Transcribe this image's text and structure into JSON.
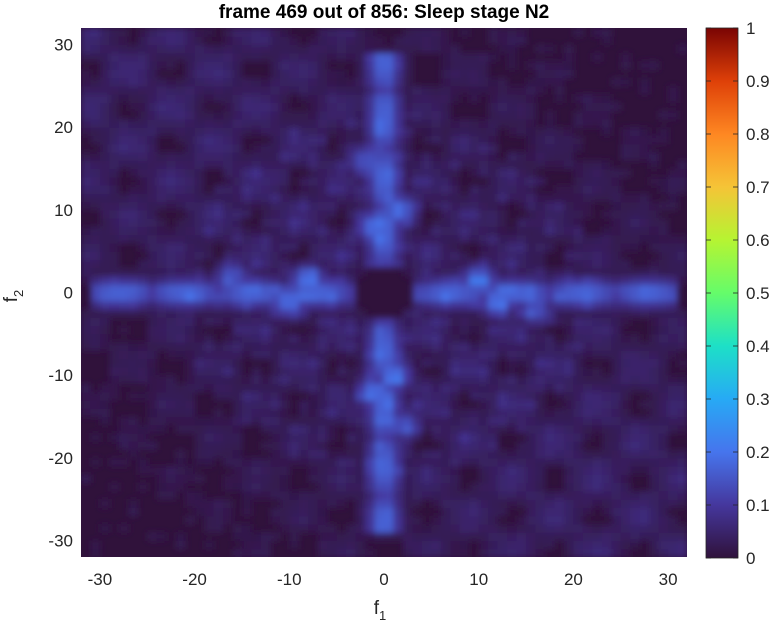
{
  "chart_data": {
    "type": "heatmap",
    "title": "frame 469 out of 856: Sleep stage N2",
    "xlabel": "f",
    "xlabel_sub": "1",
    "ylabel": "f",
    "ylabel_sub": "2",
    "xlim": [
      -32,
      32
    ],
    "ylim": [
      -32,
      32
    ],
    "x_ticks": [
      -30,
      -20,
      -10,
      0,
      10,
      20,
      30
    ],
    "y_ticks": [
      -30,
      -20,
      -10,
      0,
      10,
      20,
      30
    ],
    "colorbar": {
      "range": [
        0,
        1
      ],
      "ticks": [
        0,
        0.1,
        0.2,
        0.3,
        0.4,
        0.5,
        0.6,
        0.7,
        0.8,
        0.9,
        1
      ],
      "colormap": "turbo"
    },
    "colors": {
      "background_low": "#30123b",
      "peak": "#4a73ff"
    },
    "features": [
      {
        "kind": "horizontal-band",
        "y": 0,
        "x_range": [
          -31,
          -3
        ],
        "value": 0.18
      },
      {
        "kind": "horizontal-band",
        "y": 0,
        "x_range": [
          3,
          31
        ],
        "value": 0.18
      },
      {
        "kind": "vertical-band",
        "x": 0,
        "y_range": [
          -29,
          -3
        ],
        "value": 0.18
      },
      {
        "kind": "vertical-band",
        "x": 0,
        "y_range": [
          3,
          29
        ],
        "value": 0.18
      },
      {
        "kind": "diagonal-band",
        "direction": "anti-diagonal",
        "width": 22,
        "value": 0.06
      },
      {
        "kind": "hotspot",
        "x": -8,
        "y": 1.5,
        "value": 0.2
      },
      {
        "kind": "hotspot",
        "x": -10,
        "y": -1,
        "value": 0.2
      },
      {
        "kind": "hotspot",
        "x": 10,
        "y": 1.5,
        "value": 0.2
      },
      {
        "kind": "hotspot",
        "x": 12,
        "y": -1,
        "value": 0.2
      },
      {
        "kind": "hotspot",
        "x": 1.5,
        "y": 10,
        "value": 0.2
      },
      {
        "kind": "hotspot",
        "x": -1,
        "y": 8,
        "value": 0.2
      },
      {
        "kind": "hotspot",
        "x": 1,
        "y": -10,
        "value": 0.2
      },
      {
        "kind": "hotspot",
        "x": -1,
        "y": -12,
        "value": 0.2
      },
      {
        "kind": "hotspot",
        "x": -22,
        "y": 0,
        "value": 0.17
      },
      {
        "kind": "hotspot",
        "x": 22,
        "y": 0,
        "value": 0.17
      },
      {
        "kind": "hotspot",
        "x": 0,
        "y": 23,
        "value": 0.17
      },
      {
        "kind": "hotspot",
        "x": 0,
        "y": -22,
        "value": 0.17
      },
      {
        "kind": "hotspot",
        "x": -2,
        "y": 16,
        "value": 0.15
      },
      {
        "kind": "hotspot",
        "x": 2,
        "y": -16,
        "value": 0.15
      },
      {
        "kind": "hotspot",
        "x": -16,
        "y": 2,
        "value": 0.15
      },
      {
        "kind": "hotspot",
        "x": 16,
        "y": -2,
        "value": 0.15
      }
    ]
  }
}
